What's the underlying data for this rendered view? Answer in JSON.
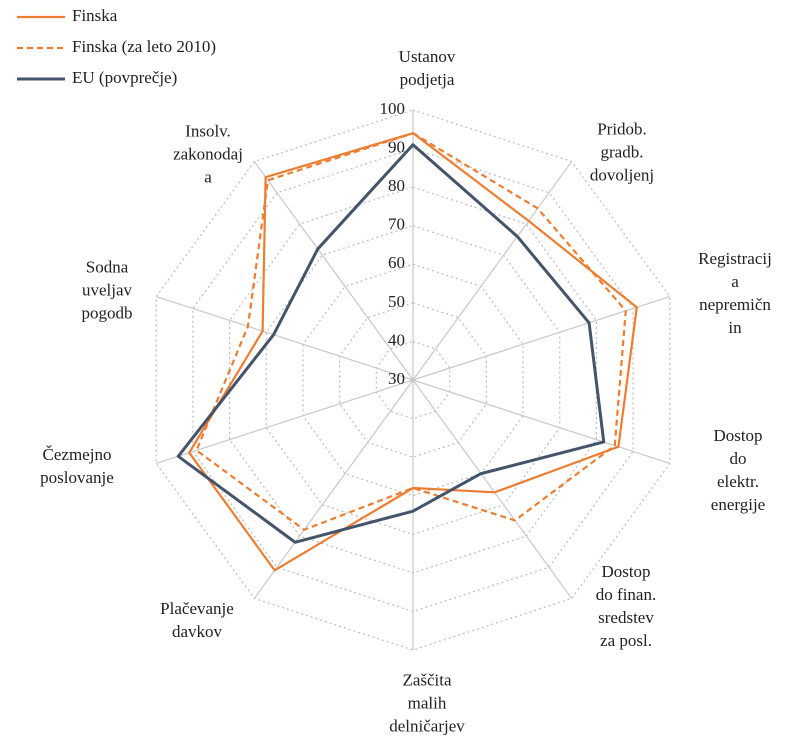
{
  "chart_data": {
    "type": "radar",
    "categories": [
      "Ustanov\npodjetja",
      "Pridob.\ngradb.\ndovoljenj",
      "Registracij\na\nnepremičn\nin",
      "Dostop do\nelektr.\nenergije",
      "Dostop\ndo finan.\nsredstev\nza posl.",
      "Zaščita\nmalih\ndelničarjev",
      "Plačevanje\ndavkov",
      "Čezmejno\nposlovanje",
      "Sodna\nuveljav\npogodb",
      "Insolv.\nzakonodaj\na"
    ],
    "series": [
      {
        "name": "Finska",
        "color": "#ed7d31",
        "dash": false,
        "values": [
          94,
          81,
          91,
          86,
          66,
          58,
          91,
          91,
          71,
          95
        ]
      },
      {
        "name": "Finska (za leto 2010)",
        "color": "#ed7d31",
        "dash": true,
        "values": [
          94,
          85,
          88,
          85,
          75,
          58,
          78,
          89,
          75,
          94
        ]
      },
      {
        "name": "EU (povprečje)",
        "color": "#44546a",
        "dash": false,
        "values": [
          91,
          76,
          78,
          82,
          60,
          64,
          82,
          94,
          68,
          72
        ]
      }
    ],
    "ylim": [
      30,
      100
    ],
    "yticks": [
      30,
      40,
      50,
      60,
      70,
      80,
      90,
      100
    ],
    "grid": true
  }
}
